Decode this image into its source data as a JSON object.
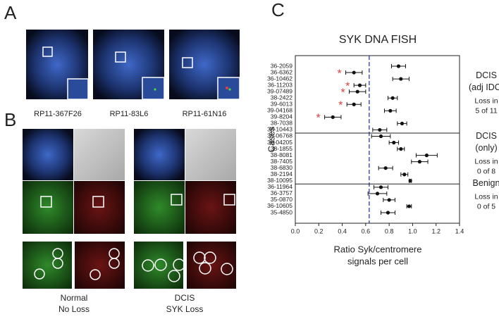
{
  "panels": {
    "a": {
      "label": "A",
      "captions": [
        "RP11-367F26",
        "RP11-83L6",
        "RP11-61N16"
      ]
    },
    "b": {
      "label": "B",
      "captions": [
        [
          "Normal",
          "No Loss"
        ],
        [
          "DCIS",
          "SYK Loss"
        ]
      ]
    },
    "c": {
      "label": "C"
    }
  },
  "chart_data": {
    "type": "dotplot",
    "title": "SYK DNA FISH",
    "ylabel": "Cases",
    "xlabel": [
      "Ratio Syk/centromere",
      "signals per cell"
    ],
    "xlim": [
      0,
      1.4
    ],
    "xticks": [
      {
        "value": 0,
        "label": "0.0"
      },
      0.2,
      0.4,
      0.6,
      0.8,
      {
        "value": 1,
        "label": "1.0"
      },
      1.2,
      1.4
    ],
    "reference_line": {
      "value": 0.63,
      "color": "#2a3cc0",
      "dashed": true
    },
    "marker_color": "#111111",
    "flag_marker": "*",
    "flag_color": "#e03a3a",
    "groups": [
      {
        "name": [
          "DCIS",
          "(adj IDC)"
        ],
        "note": [
          "Loss in",
          "5 of 11"
        ],
        "categories": [
          "36-2059",
          "36-6362",
          "36-10462",
          "36-11203",
          "39-07489",
          "38-2422",
          "39-6013",
          "39-04168",
          "39-8204",
          "38-7038",
          "38-10443"
        ],
        "values": [
          0.88,
          0.5,
          0.9,
          0.55,
          0.53,
          0.83,
          0.5,
          0.81,
          0.32,
          0.91,
          0.72
        ],
        "errors": [
          0.06,
          0.07,
          0.07,
          0.05,
          0.07,
          0.04,
          0.06,
          0.05,
          0.07,
          0.04,
          0.06
        ],
        "loss": [
          false,
          true,
          false,
          true,
          true,
          false,
          true,
          false,
          true,
          false,
          false
        ]
      },
      {
        "name": [
          "DCIS",
          "(only)"
        ],
        "note": [
          "Loss in",
          "0 of 8"
        ],
        "categories": [
          "36-06768",
          "38-04205",
          "38-1855",
          "38-8081",
          "38-7405",
          "38-6830",
          "38-2194",
          "38-10095"
        ],
        "values": [
          0.73,
          0.84,
          0.9,
          1.12,
          1.06,
          0.77,
          0.93,
          0.98
        ],
        "errors": [
          0.08,
          0.04,
          0.03,
          0.09,
          0.07,
          0.06,
          0.03,
          0.01
        ],
        "loss": [
          false,
          false,
          false,
          false,
          false,
          false,
          false,
          false
        ]
      },
      {
        "name": [
          "Benign"
        ],
        "note": [
          "Loss in",
          "0 of 5"
        ],
        "categories": [
          "36-11964",
          "36-3757",
          "35-0870",
          "36-10605",
          "35-4850"
        ],
        "values": [
          0.73,
          0.7,
          0.8,
          0.97,
          0.79
        ],
        "errors": [
          0.06,
          0.08,
          0.05,
          0.02,
          0.06
        ],
        "loss": [
          false,
          false,
          false,
          false,
          false
        ]
      }
    ]
  }
}
